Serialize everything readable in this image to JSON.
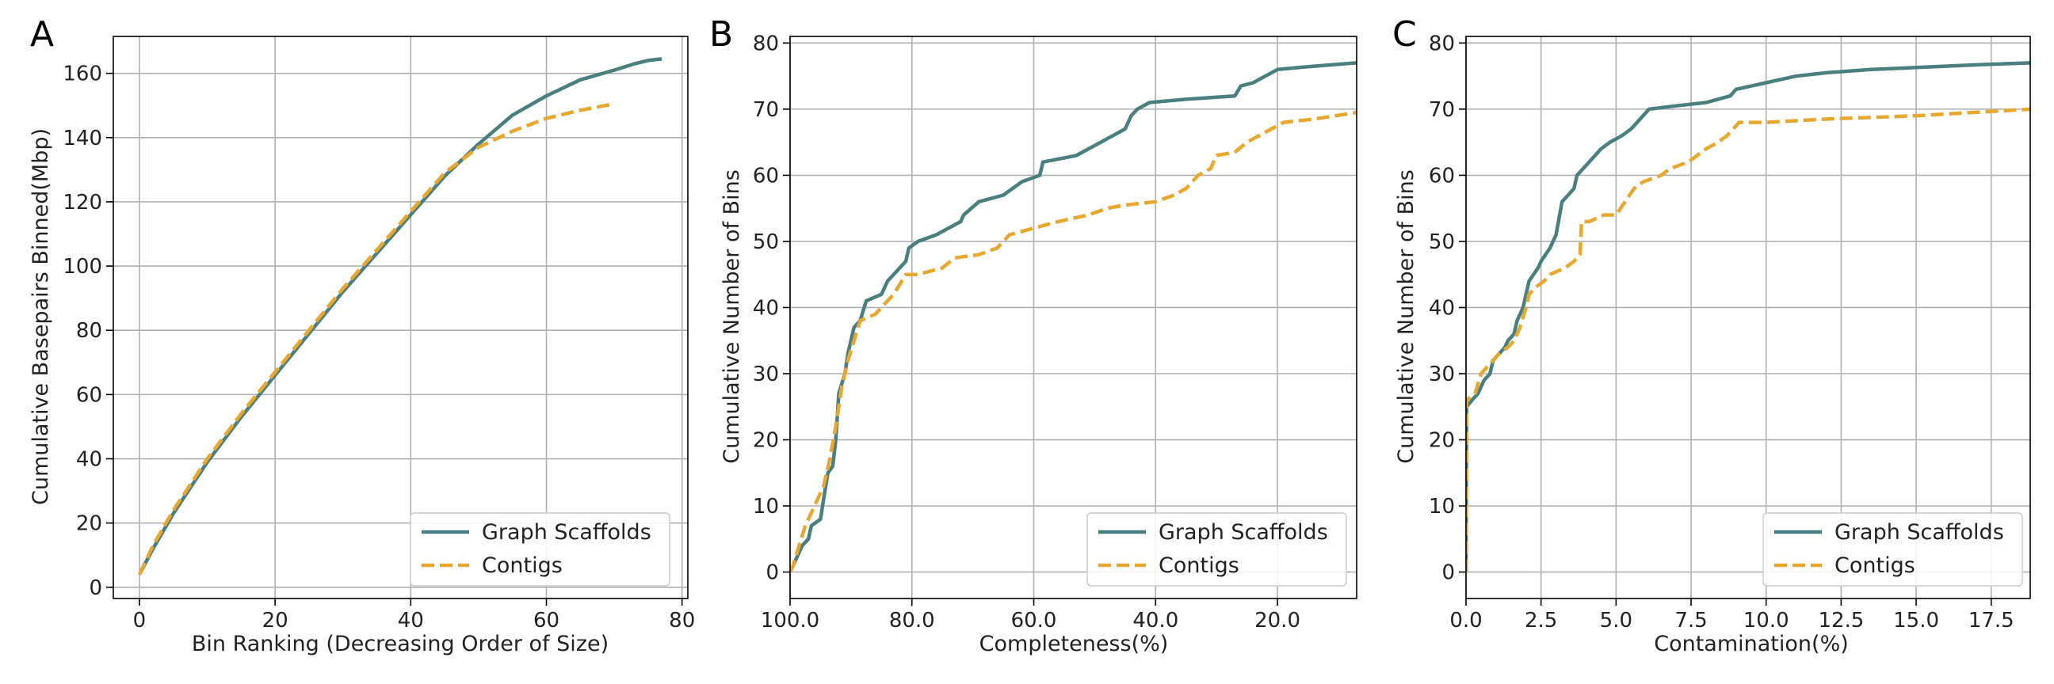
{
  "colors": {
    "scaffolds": "#4a7f80",
    "contigs": "#e8a830"
  },
  "chart_data": [
    {
      "type": "line",
      "panel_label": "A",
      "title": "",
      "xlabel": "Bin Ranking (Decreasing Order of Size)",
      "ylabel": "Cumulative Basepairs Binned(Mbp)",
      "xlim": [
        -3.85,
        80.85
      ],
      "ylim": [
        -3.5,
        171.5
      ],
      "xticks": [
        0,
        20,
        40,
        60,
        80
      ],
      "xtick_labels": [
        "0",
        "20",
        "40",
        "60",
        "80"
      ],
      "yticks": [
        0,
        20,
        40,
        60,
        80,
        100,
        120,
        140,
        160
      ],
      "ytick_labels": [
        "0",
        "20",
        "40",
        "60",
        "80",
        "100",
        "120",
        "140",
        "160"
      ],
      "grid": true,
      "legend_position": "lower-right",
      "series": [
        {
          "name": "Graph Scaffolds",
          "style": "solid",
          "color": "#4a7f80",
          "points": [
            [
              0,
              4
            ],
            [
              2,
              12
            ],
            [
              5,
              23
            ],
            [
              10,
              39
            ],
            [
              15,
              53
            ],
            [
              20,
              66
            ],
            [
              25,
              79
            ],
            [
              30,
              92
            ],
            [
              35,
              104
            ],
            [
              40,
              116
            ],
            [
              45,
              128
            ],
            [
              50,
              138
            ],
            [
              55,
              147
            ],
            [
              60,
              153
            ],
            [
              65,
              158
            ],
            [
              70,
              161
            ],
            [
              73,
              163
            ],
            [
              75,
              164
            ],
            [
              77,
              164.5
            ]
          ]
        },
        {
          "name": "Contigs",
          "style": "dashed",
          "color": "#e8a830",
          "points": [
            [
              0,
              4
            ],
            [
              2,
              13
            ],
            [
              5,
              24
            ],
            [
              10,
              40
            ],
            [
              15,
              54
            ],
            [
              20,
              67
            ],
            [
              25,
              80
            ],
            [
              30,
              93
            ],
            [
              35,
              105
            ],
            [
              40,
              117
            ],
            [
              45,
              129
            ],
            [
              50,
              137
            ],
            [
              55,
              142
            ],
            [
              60,
              146
            ],
            [
              65,
              148.5
            ],
            [
              70,
              150.5
            ]
          ]
        }
      ]
    },
    {
      "type": "line",
      "panel_label": "B",
      "title": "",
      "xlabel": "Completeness(%)",
      "ylabel": "Cumulative Number of Bins",
      "xlim": [
        100,
        7
      ],
      "ylim": [
        -4,
        81
      ],
      "xticks": [
        100,
        80,
        60,
        40,
        20
      ],
      "xtick_labels": [
        "100.0",
        "80.0",
        "60.0",
        "40.0",
        "20.0"
      ],
      "yticks": [
        0,
        10,
        20,
        30,
        40,
        50,
        60,
        70,
        80
      ],
      "ytick_labels": [
        "0",
        "10",
        "20",
        "30",
        "40",
        "50",
        "60",
        "70",
        "80"
      ],
      "grid": true,
      "legend_position": "lower-right",
      "series": [
        {
          "name": "Graph Scaffolds",
          "style": "solid",
          "color": "#4a7f80",
          "points": [
            [
              100,
              0
            ],
            [
              99,
              2
            ],
            [
              98,
              4
            ],
            [
              97,
              5
            ],
            [
              96.5,
              7
            ],
            [
              95,
              8
            ],
            [
              94.5,
              11
            ],
            [
              93.8,
              15
            ],
            [
              93,
              16
            ],
            [
              92.5,
              20
            ],
            [
              92,
              27
            ],
            [
              91,
              30
            ],
            [
              90.5,
              33
            ],
            [
              89.5,
              37
            ],
            [
              88.5,
              38
            ],
            [
              87.5,
              41
            ],
            [
              85,
              42
            ],
            [
              84,
              44
            ],
            [
              82,
              46
            ],
            [
              81,
              47
            ],
            [
              80.5,
              49
            ],
            [
              79,
              50
            ],
            [
              76,
              51
            ],
            [
              72,
              53
            ],
            [
              71.5,
              54
            ],
            [
              69,
              56
            ],
            [
              65,
              57
            ],
            [
              62,
              59
            ],
            [
              59,
              60
            ],
            [
              58.5,
              62
            ],
            [
              53,
              63
            ],
            [
              51,
              64
            ],
            [
              47,
              66
            ],
            [
              45,
              67
            ],
            [
              44,
              69
            ],
            [
              43,
              70
            ],
            [
              41,
              71
            ],
            [
              35,
              71.5
            ],
            [
              27,
              72
            ],
            [
              26,
              73.5
            ],
            [
              24,
              74
            ],
            [
              20,
              76
            ],
            [
              14,
              76.5
            ],
            [
              7,
              77
            ]
          ]
        },
        {
          "name": "Contigs",
          "style": "dashed",
          "color": "#e8a830",
          "points": [
            [
              100,
              0
            ],
            [
              99.5,
              1
            ],
            [
              98.5,
              4
            ],
            [
              97.5,
              7
            ],
            [
              96,
              10
            ],
            [
              94.5,
              13
            ],
            [
              93.5,
              17
            ],
            [
              92.5,
              22
            ],
            [
              91.5,
              28
            ],
            [
              90.5,
              32
            ],
            [
              89.5,
              35
            ],
            [
              88.5,
              38
            ],
            [
              86,
              39
            ],
            [
              83,
              42
            ],
            [
              81,
              45
            ],
            [
              79,
              45
            ],
            [
              75,
              46
            ],
            [
              73,
              47.5
            ],
            [
              69,
              48
            ],
            [
              66,
              49
            ],
            [
              64,
              51
            ],
            [
              60,
              52
            ],
            [
              56,
              53
            ],
            [
              51,
              54
            ],
            [
              48,
              55
            ],
            [
              45,
              55.5
            ],
            [
              40,
              56
            ],
            [
              37,
              57
            ],
            [
              35,
              58
            ],
            [
              33,
              60
            ],
            [
              31,
              61
            ],
            [
              30,
              63
            ],
            [
              27,
              63.5
            ],
            [
              25,
              65
            ],
            [
              21,
              67
            ],
            [
              19,
              68
            ],
            [
              14,
              68.5
            ],
            [
              7,
              69.5
            ]
          ]
        }
      ]
    },
    {
      "type": "line",
      "panel_label": "C",
      "title": "",
      "xlabel": "Contamination(%)",
      "ylabel": "Cumulative Number of Bins",
      "xlim": [
        0,
        18.8
      ],
      "ylim": [
        -4,
        81
      ],
      "xticks": [
        0,
        2.5,
        5,
        7.5,
        10,
        12.5,
        15,
        17.5
      ],
      "xtick_labels": [
        "0.0",
        "2.5",
        "5.0",
        "7.5",
        "10.0",
        "12.5",
        "15.0",
        "17.5"
      ],
      "yticks": [
        0,
        10,
        20,
        30,
        40,
        50,
        60,
        70,
        80
      ],
      "ytick_labels": [
        "0",
        "10",
        "20",
        "30",
        "40",
        "50",
        "60",
        "70",
        "80"
      ],
      "grid": true,
      "legend_position": "lower-right",
      "series": [
        {
          "name": "Graph Scaffolds",
          "style": "solid",
          "color": "#4a7f80",
          "points": [
            [
              0,
              0
            ],
            [
              0.02,
              25
            ],
            [
              0.2,
              26
            ],
            [
              0.4,
              27
            ],
            [
              0.6,
              29
            ],
            [
              0.8,
              30
            ],
            [
              0.9,
              32
            ],
            [
              1.1,
              33
            ],
            [
              1.3,
              34
            ],
            [
              1.4,
              35
            ],
            [
              1.6,
              36
            ],
            [
              1.7,
              38
            ],
            [
              1.9,
              40
            ],
            [
              2.0,
              42
            ],
            [
              2.1,
              44
            ],
            [
              2.4,
              46
            ],
            [
              2.5,
              47
            ],
            [
              2.8,
              49
            ],
            [
              3.0,
              51
            ],
            [
              3.2,
              56
            ],
            [
              3.4,
              57
            ],
            [
              3.6,
              58
            ],
            [
              3.7,
              60
            ],
            [
              3.9,
              61
            ],
            [
              4.1,
              62
            ],
            [
              4.3,
              63
            ],
            [
              4.5,
              64
            ],
            [
              4.8,
              65
            ],
            [
              5.2,
              66
            ],
            [
              5.5,
              67
            ],
            [
              5.7,
              68
            ],
            [
              5.9,
              69
            ],
            [
              6.1,
              70
            ],
            [
              7.0,
              70.5
            ],
            [
              8.0,
              71
            ],
            [
              8.8,
              72
            ],
            [
              9.0,
              73
            ],
            [
              10.0,
              74
            ],
            [
              10.5,
              74.5
            ],
            [
              11.0,
              75
            ],
            [
              12.0,
              75.5
            ],
            [
              13.5,
              76
            ],
            [
              15.0,
              76.3
            ],
            [
              17.0,
              76.7
            ],
            [
              18.8,
              77
            ]
          ]
        },
        {
          "name": "Contigs",
          "style": "dashed",
          "color": "#e8a830",
          "points": [
            [
              0,
              0
            ],
            [
              0.02,
              26
            ],
            [
              0.3,
              27
            ],
            [
              0.5,
              30
            ],
            [
              0.9,
              32
            ],
            [
              1.1,
              33
            ],
            [
              1.4,
              34
            ],
            [
              1.6,
              35
            ],
            [
              1.8,
              37
            ],
            [
              2.0,
              40
            ],
            [
              2.1,
              42
            ],
            [
              2.3,
              43
            ],
            [
              2.6,
              44
            ],
            [
              2.8,
              45
            ],
            [
              3.3,
              46
            ],
            [
              3.6,
              47
            ],
            [
              3.8,
              48
            ],
            [
              3.85,
              53
            ],
            [
              4.1,
              53
            ],
            [
              4.6,
              54
            ],
            [
              5.0,
              54
            ],
            [
              5.3,
              56
            ],
            [
              5.6,
              58
            ],
            [
              5.9,
              59
            ],
            [
              6.5,
              60
            ],
            [
              6.8,
              61
            ],
            [
              7.4,
              62
            ],
            [
              7.7,
              63
            ],
            [
              8.0,
              64
            ],
            [
              8.4,
              65
            ],
            [
              8.7,
              66
            ],
            [
              8.9,
              67
            ],
            [
              9.1,
              68
            ],
            [
              10.0,
              68
            ],
            [
              12.0,
              68.5
            ],
            [
              15.0,
              69
            ],
            [
              18.8,
              70
            ]
          ]
        }
      ]
    }
  ]
}
